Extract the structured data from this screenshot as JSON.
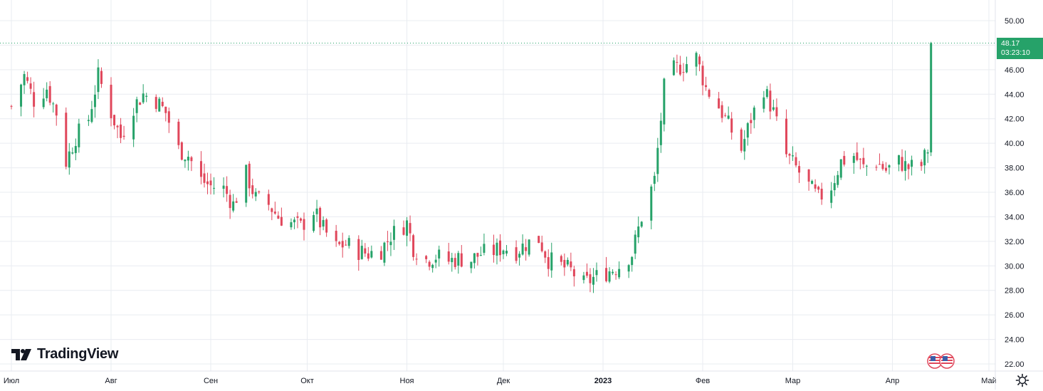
{
  "brand": {
    "name": "TradingView"
  },
  "last_price": {
    "value": "48.17",
    "countdown": "03:23:10"
  },
  "colors": {
    "up": "#26a269",
    "down": "#e0475b",
    "grid": "#e9ecf1",
    "text": "#131722",
    "price_line": "#26a269"
  },
  "icons": {
    "settings": "gear-icon",
    "flag": "us-flag-icon"
  },
  "chart_data": {
    "type": "candlestick",
    "title": "",
    "ylim": [
      21.5,
      51
    ],
    "y_ticks": [
      "22.00",
      "24.00",
      "26.00",
      "28.00",
      "30.00",
      "32.00",
      "34.00",
      "36.00",
      "38.00",
      "40.00",
      "42.00",
      "44.00",
      "46.00",
      "48.00",
      "50.00"
    ],
    "x_ticks": [
      {
        "label": "Июл",
        "date": "2022-07-01",
        "bold": false
      },
      {
        "label": "Авг",
        "date": "2022-08-01",
        "bold": false
      },
      {
        "label": "Сен",
        "date": "2022-09-01",
        "bold": false
      },
      {
        "label": "Окт",
        "date": "2022-10-01",
        "bold": false
      },
      {
        "label": "Ноя",
        "date": "2022-11-01",
        "bold": false
      },
      {
        "label": "Дек",
        "date": "2022-12-01",
        "bold": false
      },
      {
        "label": "2023",
        "date": "2023-01-01",
        "bold": true
      },
      {
        "label": "Фев",
        "date": "2023-02-01",
        "bold": false
      },
      {
        "label": "Мар",
        "date": "2023-03-01",
        "bold": false
      },
      {
        "label": "Апр",
        "date": "2023-04-01",
        "bold": false
      },
      {
        "label": "Май",
        "date": "2023-05-01",
        "bold": false
      }
    ],
    "close_path": [
      [
        "2022-07-01",
        43.0
      ],
      [
        "2022-07-05",
        45.5
      ],
      [
        "2022-07-08",
        43.5
      ],
      [
        "2022-07-12",
        44.5
      ],
      [
        "2022-07-15",
        42.5
      ],
      [
        "2022-07-18",
        38.5
      ],
      [
        "2022-07-21",
        40.5
      ],
      [
        "2022-07-25",
        42.0
      ],
      [
        "2022-07-28",
        45.5
      ],
      [
        "2022-08-01",
        42.5
      ],
      [
        "2022-08-04",
        40.5
      ],
      [
        "2022-08-08",
        43.0
      ],
      [
        "2022-08-11",
        44.0
      ],
      [
        "2022-08-15",
        43.5
      ],
      [
        "2022-08-18",
        42.5
      ],
      [
        "2022-08-22",
        39.5
      ],
      [
        "2022-08-25",
        39.0
      ],
      [
        "2022-08-29",
        37.0
      ],
      [
        "2022-09-01",
        36.5
      ],
      [
        "2022-09-05",
        36.3
      ],
      [
        "2022-09-08",
        35.0
      ],
      [
        "2022-09-12",
        37.5
      ],
      [
        "2022-09-15",
        35.5
      ],
      [
        "2022-09-19",
        35.0
      ],
      [
        "2022-09-22",
        34.0
      ],
      [
        "2022-09-26",
        33.5
      ],
      [
        "2022-09-29",
        33.2
      ],
      [
        "2022-10-03",
        34.5
      ],
      [
        "2022-10-06",
        33.0
      ],
      [
        "2022-10-10",
        31.5
      ],
      [
        "2022-10-13",
        31.8
      ],
      [
        "2022-10-17",
        31.2
      ],
      [
        "2022-10-20",
        31.0
      ],
      [
        "2022-10-24",
        31.3
      ],
      [
        "2022-10-27",
        32.5
      ],
      [
        "2022-11-01",
        33.5
      ],
      [
        "2022-11-03",
        31.5
      ],
      [
        "2022-11-07",
        30.5
      ],
      [
        "2022-11-10",
        30.8
      ],
      [
        "2022-11-14",
        30.4
      ],
      [
        "2022-11-17",
        30.6
      ],
      [
        "2022-11-21",
        30.5
      ],
      [
        "2022-11-24",
        31.0
      ],
      [
        "2022-11-28",
        31.2
      ],
      [
        "2022-12-01",
        31.5
      ],
      [
        "2022-12-05",
        31.2
      ],
      [
        "2022-12-08",
        31.8
      ],
      [
        "2022-12-12",
        32.2
      ],
      [
        "2022-12-15",
        30.5
      ],
      [
        "2022-12-19",
        30.0
      ],
      [
        "2022-12-22",
        29.6
      ],
      [
        "2022-12-26",
        28.5
      ],
      [
        "2022-12-29",
        29.0
      ],
      [
        "2023-01-03",
        29.6
      ],
      [
        "2023-01-06",
        30.0
      ],
      [
        "2023-01-10",
        31.0
      ],
      [
        "2023-01-13",
        34.0
      ],
      [
        "2023-01-17",
        37.0
      ],
      [
        "2023-01-20",
        44.5
      ],
      [
        "2023-01-23",
        46.0
      ],
      [
        "2023-01-27",
        46.5
      ],
      [
        "2023-01-30",
        47.0
      ],
      [
        "2023-02-02",
        44.5
      ],
      [
        "2023-02-06",
        43.0
      ],
      [
        "2023-02-09",
        41.5
      ],
      [
        "2023-02-13",
        39.5
      ],
      [
        "2023-02-16",
        42.0
      ],
      [
        "2023-02-20",
        44.5
      ],
      [
        "2023-02-23",
        42.5
      ],
      [
        "2023-02-27",
        39.0
      ],
      [
        "2023-03-02",
        38.0
      ],
      [
        "2023-03-06",
        36.5
      ],
      [
        "2023-03-09",
        35.5
      ],
      [
        "2023-03-13",
        36.5
      ],
      [
        "2023-03-16",
        38.5
      ],
      [
        "2023-03-20",
        39.0
      ],
      [
        "2023-03-23",
        38.0
      ],
      [
        "2023-03-27",
        38.5
      ],
      [
        "2023-03-30",
        37.8
      ],
      [
        "2023-04-03",
        38.5
      ],
      [
        "2023-04-06",
        38.0
      ],
      [
        "2023-04-10",
        38.2
      ],
      [
        "2023-04-12",
        39.5
      ],
      [
        "2023-04-13",
        48.17
      ]
    ]
  }
}
